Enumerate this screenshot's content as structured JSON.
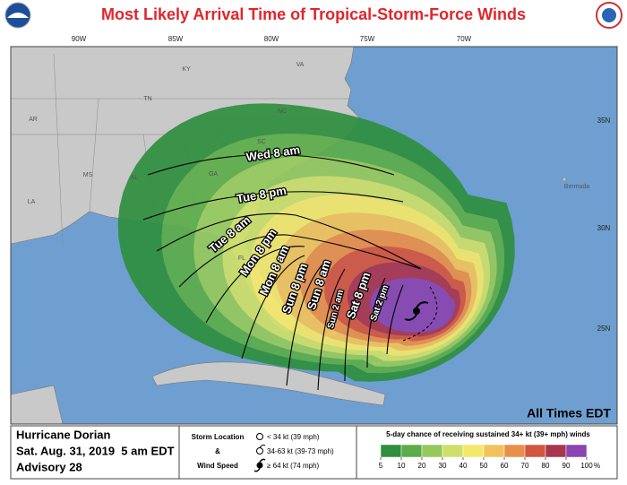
{
  "header": {
    "title": "Most Likely Arrival Time of Tropical-Storm-Force Winds"
  },
  "map": {
    "longitudes": [
      "90W",
      "85W",
      "80W",
      "75W",
      "70W"
    ],
    "latitudes": [
      "35N",
      "30N",
      "25N"
    ],
    "states": [
      "KY",
      "VA",
      "TN",
      "NC",
      "AR",
      "SC",
      "MS",
      "AL",
      "GA",
      "LA",
      "FL"
    ],
    "places": [
      "Bermuda"
    ],
    "contour_labels": [
      "Wed 8 am",
      "Tue 8 pm",
      "Tue 8 am",
      "Mon 8 pm",
      "Mon 8 am",
      "Sun 8 pm",
      "Sun 8 am",
      "Sun 2 am",
      "Sat 8 pm",
      "Sat 2 pm"
    ],
    "time_note": "All Times EDT"
  },
  "info": {
    "storm": "Hurricane Dorian",
    "date": "Sat. Aug. 31, 2019  5 am EDT",
    "advisory": "Advisory 28"
  },
  "symbol_legend": {
    "title_lines": [
      "Storm Location",
      "&",
      "Wind Speed"
    ],
    "entries": [
      "< 34 kt (39 mph)",
      "34-63 kt (39-73 mph)",
      "≥ 64 kt (74 mph)"
    ]
  },
  "color_legend": {
    "title": "5-day chance of receiving sustained 34+ kt (39+ mph) winds",
    "ticks": [
      5,
      10,
      20,
      30,
      40,
      50,
      60,
      70,
      80,
      90,
      100
    ],
    "unit": "%",
    "colors": [
      "#2f8f3f",
      "#5cad4a",
      "#96c95c",
      "#cfe06a",
      "#f4e86c",
      "#f2c35c",
      "#e98f4a",
      "#d35640",
      "#a9354f",
      "#8a45b0"
    ]
  }
}
